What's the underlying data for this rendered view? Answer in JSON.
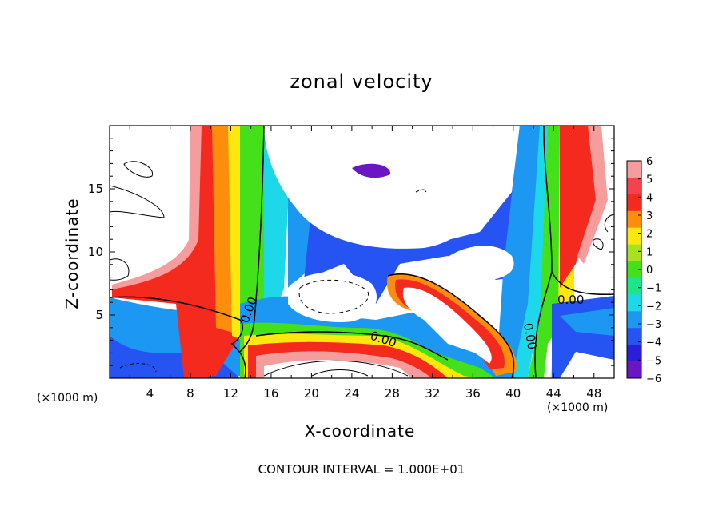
{
  "chart_data": {
    "type": "heatmap",
    "title": "zonal velocity",
    "xlabel": "X-coordinate",
    "ylabel": "Z-coordinate",
    "x_unit_left": "(×1000 m)",
    "x_unit_right": "(×1000 m)",
    "footer": "CONTOUR INTERVAL = 1.000E+01",
    "xlim": [
      0,
      50
    ],
    "ylim": [
      0,
      20
    ],
    "x_ticks": [
      "4",
      "8",
      "12",
      "16",
      "20",
      "24",
      "28",
      "32",
      "36",
      "40",
      "44",
      "48"
    ],
    "y_ticks": [
      "5",
      "10",
      "15"
    ],
    "colorbar": {
      "labels": [
        "6",
        "5",
        "4",
        "3",
        "2",
        "1",
        "0",
        "−1",
        "−2",
        "−3",
        "−4",
        "−5",
        "−6"
      ],
      "levels": [
        6,
        5,
        4,
        3,
        2,
        1,
        0,
        -1,
        -2,
        -3,
        -4,
        -5,
        -6
      ],
      "colors": [
        "#f59c9c",
        "#f5424f",
        "#f52a1e",
        "#fd8e0c",
        "#fde80d",
        "#a8e21f",
        "#44e11b",
        "#1ce58a",
        "#1cd8e8",
        "#1c98f2",
        "#2554f2",
        "#2a1fd8",
        "#6a16c4"
      ]
    },
    "contour_labels": [
      "0.00",
      "0.00",
      "0.00",
      "0.00"
    ],
    "contour_label_values": [
      0,
      0,
      0,
      0
    ],
    "colors": {
      "background": "#ffffff",
      "frame": "#000000"
    }
  }
}
